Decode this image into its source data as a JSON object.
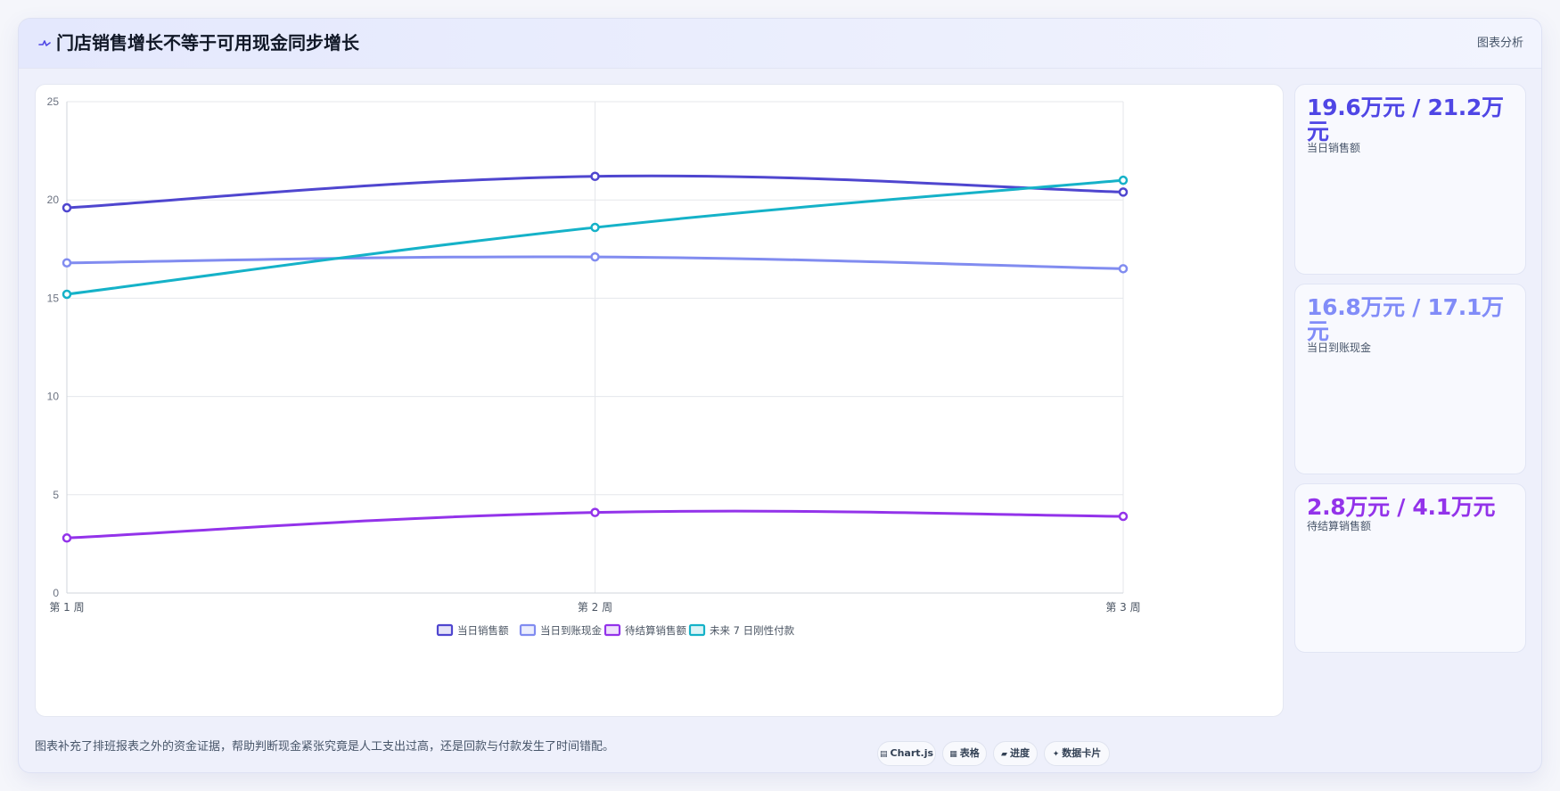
{
  "header": {
    "icon": "pulse-icon",
    "title": "门店销售增长不等于可用现金同步增长",
    "right_label": "图表分析"
  },
  "chart_data": {
    "type": "line",
    "categories": [
      "第 1 周",
      "第 2 周",
      "第 3 周"
    ],
    "ylim": [
      0,
      25
    ],
    "yticks": [
      0,
      5,
      10,
      15,
      20,
      25
    ],
    "grid": true,
    "legend_position": "bottom",
    "series": [
      {
        "name": "当日销售额",
        "values": [
          19.6,
          21.2,
          20.4
        ],
        "color": "#4f46cf"
      },
      {
        "name": "当日到账现金",
        "values": [
          16.8,
          17.1,
          16.5
        ],
        "color": "#818cf0"
      },
      {
        "name": "待结算销售额",
        "values": [
          2.8,
          4.1,
          3.9
        ],
        "color": "#9333ea"
      },
      {
        "name": "未来 7 日刚性付款",
        "values": [
          15.2,
          18.6,
          21.0
        ],
        "color": "#15b2c8"
      }
    ]
  },
  "kpis": [
    {
      "value": "19.6万元 / 21.2万元",
      "label": "当日销售额",
      "color": "#4f46e5"
    },
    {
      "value": "16.8万元 / 17.1万元",
      "label": "当日到账现金",
      "color": "#818cf8"
    },
    {
      "value": "2.8万元 / 4.1万元",
      "label": "待结算销售额",
      "color": "#9333ea"
    }
  ],
  "footer": {
    "note": "图表补充了排班报表之外的资金证据，帮助判断现金紧张究竟是人工支出过高，还是回款与付款发生了时间错配。",
    "tags": [
      {
        "icon": "chart-icon",
        "glyph": "▤",
        "label": "Chart.js"
      },
      {
        "icon": "table-icon",
        "glyph": "▦",
        "label": "表格"
      },
      {
        "icon": "progress-icon",
        "glyph": "▰",
        "label": "进度"
      },
      {
        "icon": "card-icon",
        "glyph": "✦",
        "label": "数据卡片"
      }
    ]
  }
}
